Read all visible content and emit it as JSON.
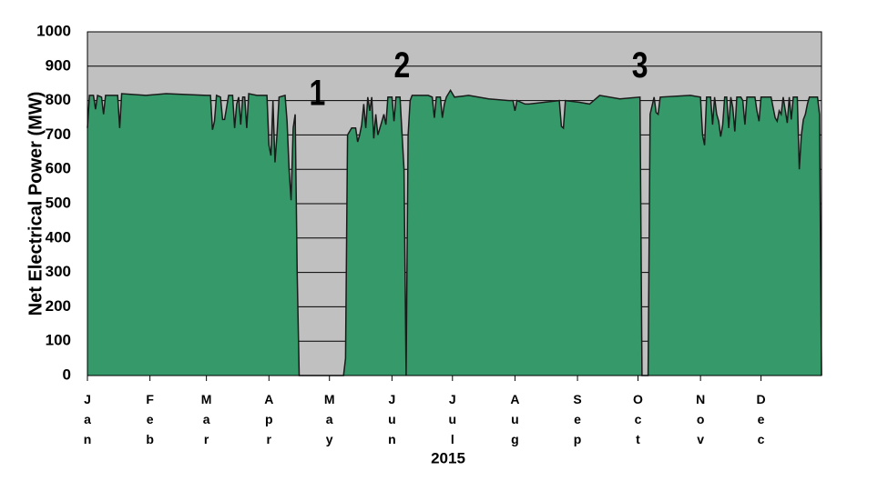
{
  "chart_data": {
    "type": "area",
    "ylabel": "Net Electrical Power (MW)",
    "xlabel": "2015",
    "color": "#36996a",
    "background": "#c0c0c0",
    "grid": true,
    "ylim": [
      0,
      1000
    ],
    "yticks": [
      0,
      100,
      200,
      300,
      400,
      500,
      600,
      700,
      800,
      900,
      1000
    ],
    "xlim": [
      1,
      365
    ],
    "xticks": [
      {
        "value": 1,
        "label": "Jan"
      },
      {
        "value": 32,
        "label": "Feb"
      },
      {
        "value": 60,
        "label": "Mar"
      },
      {
        "value": 91,
        "label": "Apr"
      },
      {
        "value": 121,
        "label": "May"
      },
      {
        "value": 152,
        "label": "Jun"
      },
      {
        "value": 182,
        "label": "Jul"
      },
      {
        "value": 213,
        "label": "Aug"
      },
      {
        "value": 244,
        "label": "Sep"
      },
      {
        "value": 274,
        "label": "Oct"
      },
      {
        "value": 305,
        "label": "Nov"
      },
      {
        "value": 335,
        "label": "Dec"
      }
    ],
    "annotations": [
      {
        "text": "1",
        "x": 115,
        "y": 815
      },
      {
        "text": "2",
        "x": 157,
        "y": 895
      },
      {
        "text": "3",
        "x": 275,
        "y": 895
      }
    ],
    "x": [
      1,
      2,
      4,
      5,
      6,
      8,
      9,
      10,
      16,
      17,
      18,
      30,
      40,
      60,
      62,
      63,
      64,
      65,
      67,
      68,
      69,
      71,
      73,
      74,
      75,
      76,
      77,
      78,
      79,
      80,
      81,
      85,
      90,
      91,
      92,
      93,
      94,
      95,
      96,
      99,
      100,
      101,
      102,
      103,
      104,
      105,
      106,
      128,
      129,
      130,
      132,
      134,
      135,
      136,
      137,
      138,
      139,
      140,
      141,
      142,
      143,
      144,
      145,
      146,
      147,
      148,
      149,
      150,
      152,
      153,
      154,
      156,
      158,
      159,
      160,
      161,
      162,
      170,
      172,
      173,
      174,
      176,
      177,
      178,
      179,
      181,
      183,
      190,
      200,
      210,
      212,
      213,
      214,
      218,
      220,
      235,
      236,
      237,
      238,
      245,
      250,
      255,
      265,
      275,
      276,
      279,
      280,
      282,
      283,
      284,
      285,
      300,
      305,
      306,
      307,
      308,
      310,
      311,
      312,
      313,
      314,
      315,
      316,
      317,
      318,
      319,
      320,
      321,
      322,
      323,
      325,
      326,
      327,
      328,
      332,
      333,
      334,
      335,
      340,
      342,
      343,
      344,
      345,
      346,
      348,
      349,
      350,
      351,
      353,
      354,
      355,
      356,
      357,
      358,
      359,
      363,
      364,
      365
    ],
    "values": [
      720,
      815,
      815,
      775,
      815,
      810,
      760,
      815,
      815,
      720,
      820,
      815,
      820,
      815,
      815,
      715,
      740,
      815,
      810,
      745,
      745,
      815,
      815,
      720,
      790,
      810,
      730,
      810,
      810,
      720,
      820,
      815,
      815,
      670,
      640,
      800,
      620,
      700,
      810,
      815,
      740,
      600,
      510,
      720,
      760,
      300,
      0,
      0,
      50,
      700,
      720,
      720,
      680,
      700,
      730,
      790,
      720,
      810,
      770,
      810,
      690,
      760,
      700,
      720,
      740,
      760,
      730,
      810,
      810,
      740,
      810,
      810,
      600,
      0,
      700,
      800,
      815,
      815,
      810,
      750,
      810,
      810,
      750,
      790,
      810,
      830,
      810,
      815,
      805,
      800,
      800,
      770,
      800,
      790,
      790,
      800,
      725,
      720,
      800,
      795,
      790,
      815,
      805,
      810,
      0,
      0,
      760,
      810,
      765,
      760,
      810,
      815,
      810,
      700,
      670,
      810,
      810,
      730,
      810,
      760,
      740,
      695,
      730,
      810,
      810,
      720,
      810,
      780,
      710,
      810,
      810,
      800,
      730,
      810,
      810,
      770,
      740,
      810,
      810,
      750,
      740,
      770,
      760,
      810,
      735,
      810,
      745,
      810,
      810,
      600,
      700,
      745,
      760,
      790,
      810,
      810,
      760,
      0
    ]
  }
}
